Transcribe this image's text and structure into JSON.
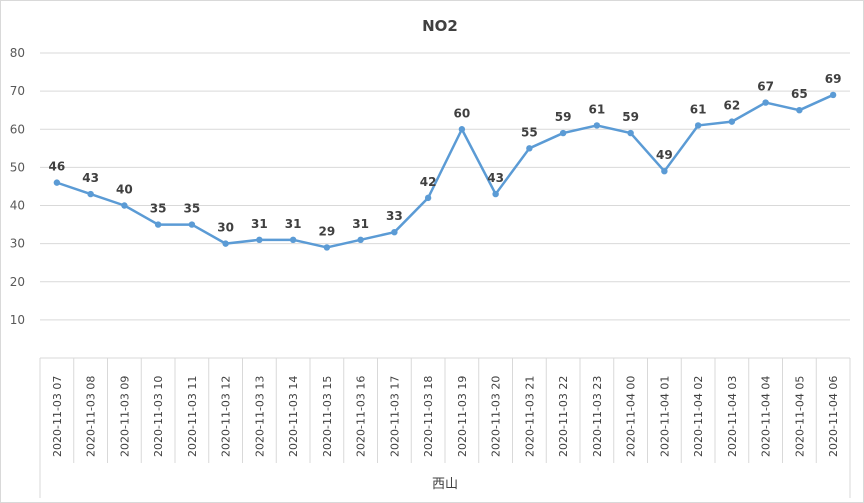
{
  "chart_data": {
    "type": "line",
    "title": "NO2",
    "xlabel": "",
    "ylabel": "",
    "group_label": "西山",
    "ylim": [
      0,
      80
    ],
    "yticks": [
      10,
      20,
      30,
      40,
      50,
      60,
      70,
      80
    ],
    "grid": true,
    "legend": "none",
    "colors": {
      "line": "#5b9bd5",
      "grid": "#d9d9d9",
      "text": "#404040"
    },
    "categories": [
      "2020-11-03 07",
      "2020-11-03 08",
      "2020-11-03 09",
      "2020-11-03 10",
      "2020-11-03 11",
      "2020-11-03 12",
      "2020-11-03 13",
      "2020-11-03 14",
      "2020-11-03 15",
      "2020-11-03 16",
      "2020-11-03 17",
      "2020-11-03 18",
      "2020-11-03 19",
      "2020-11-03 20",
      "2020-11-03 21",
      "2020-11-03 22",
      "2020-11-03 23",
      "2020-11-04 00",
      "2020-11-04 01",
      "2020-11-04 02",
      "2020-11-04 03",
      "2020-11-04 04",
      "2020-11-04 05",
      "2020-11-04 06"
    ],
    "series": [
      {
        "values": [
          46,
          43,
          40,
          35,
          35,
          30,
          31,
          31,
          29,
          31,
          33,
          42,
          60,
          43,
          55,
          59,
          61,
          59,
          49,
          61,
          62,
          67,
          65,
          69
        ]
      }
    ]
  }
}
